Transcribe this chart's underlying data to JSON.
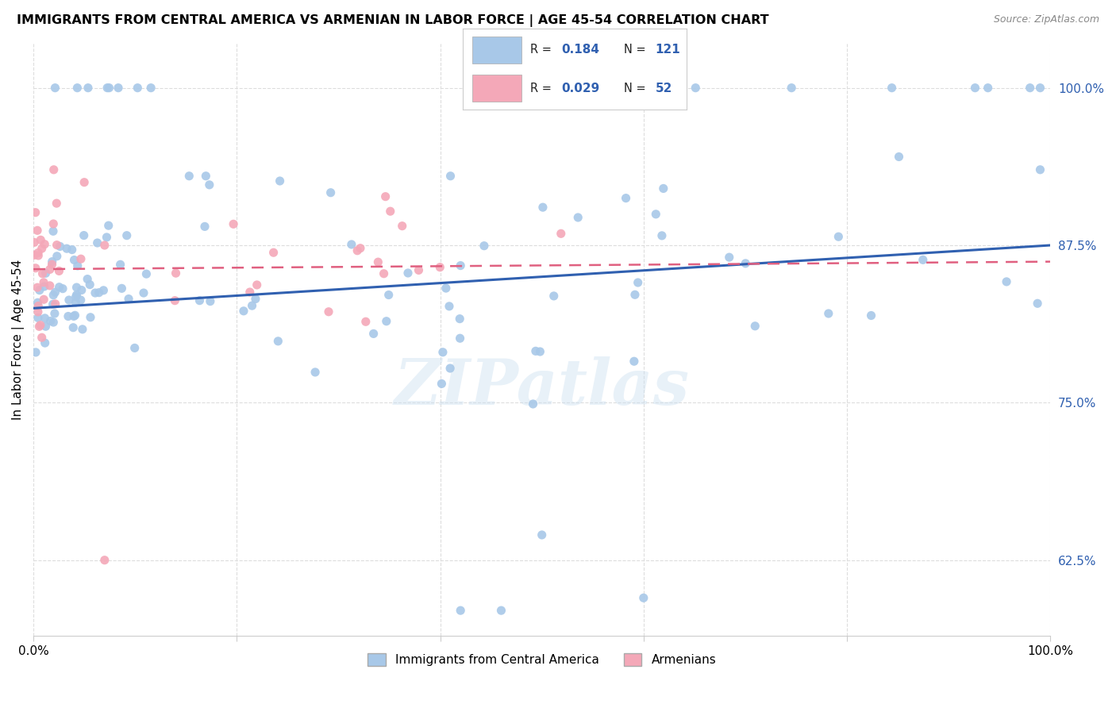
{
  "title": "IMMIGRANTS FROM CENTRAL AMERICA VS ARMENIAN IN LABOR FORCE | AGE 45-54 CORRELATION CHART",
  "source": "Source: ZipAtlas.com",
  "ylabel": "In Labor Force | Age 45-54",
  "yticks": [
    0.625,
    0.75,
    0.875,
    1.0
  ],
  "ytick_labels": [
    "62.5%",
    "75.0%",
    "87.5%",
    "100.0%"
  ],
  "xlim": [
    0.0,
    1.0
  ],
  "ylim": [
    0.565,
    1.035
  ],
  "blue_R": 0.184,
  "blue_N": 121,
  "pink_R": 0.029,
  "pink_N": 52,
  "blue_color": "#a8c8e8",
  "pink_color": "#f4a8b8",
  "blue_line_color": "#3060b0",
  "pink_line_color": "#e06080",
  "legend_label_blue": "Immigrants from Central America",
  "legend_label_pink": "Armenians",
  "watermark": "ZIPatlas",
  "blue_trend_x0": 0.0,
  "blue_trend_y0": 0.825,
  "blue_trend_x1": 1.0,
  "blue_trend_y1": 0.875,
  "pink_trend_x0": 0.0,
  "pink_trend_y0": 0.856,
  "pink_trend_x1": 1.0,
  "pink_trend_y1": 0.862
}
